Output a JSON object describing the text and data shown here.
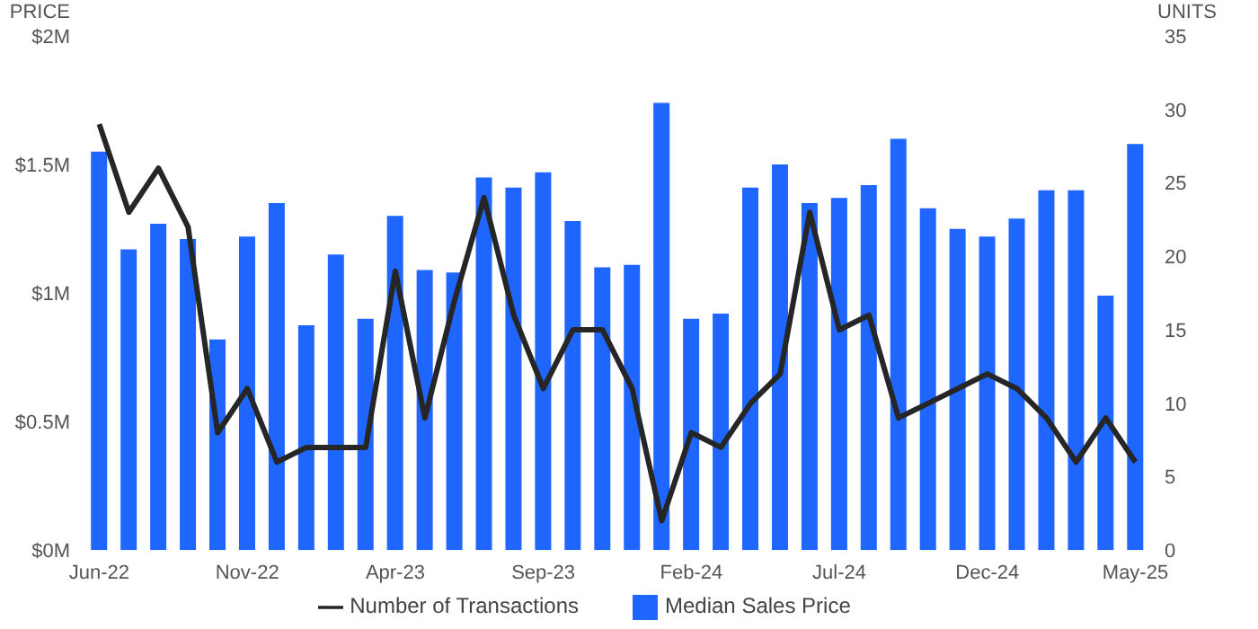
{
  "chart_data": {
    "type": "bar",
    "ylabel": "PRICE",
    "y2label": "UNITS",
    "categories": [
      "Jun-22",
      null,
      null,
      null,
      null,
      "Nov-22",
      null,
      null,
      null,
      null,
      "Apr-23",
      null,
      null,
      null,
      null,
      "Sep-23",
      null,
      null,
      null,
      null,
      "Feb-24",
      null,
      null,
      null,
      null,
      "Jul-24",
      null,
      null,
      null,
      null,
      "Dec-24",
      null,
      null,
      null,
      null,
      "May-25"
    ],
    "series": [
      {
        "name": "Number of Transactions",
        "type": "line",
        "axis": "y2",
        "color": "#262626",
        "values": [
          29,
          23,
          26,
          22,
          8,
          11,
          6,
          7,
          7,
          7,
          19,
          9,
          17,
          24,
          16,
          11,
          15,
          15,
          11,
          2,
          8,
          7,
          10,
          12,
          23,
          15,
          16,
          9,
          10,
          11,
          12,
          11,
          9,
          6,
          9,
          6
        ]
      },
      {
        "name": "Median Sales Price",
        "color": "#1f66ff",
        "values": [
          1.55,
          1.17,
          1.27,
          1.21,
          0.82,
          1.22,
          1.35,
          0.875,
          1.15,
          0.9,
          1.3,
          1.09,
          1.08,
          1.45,
          1.41,
          1.47,
          1.28,
          1.1,
          1.11,
          1.74,
          0.9,
          0.92,
          1.41,
          1.5,
          1.35,
          1.37,
          1.42,
          1.6,
          1.33,
          1.25,
          1.22,
          1.29,
          1.4,
          1.4,
          0.99,
          1.58
        ]
      }
    ],
    "ylim": [
      0,
      2
    ],
    "yticks": [
      {
        "value": 0,
        "label": "$0M"
      },
      {
        "value": 0.5,
        "label": "$0.5M"
      },
      {
        "value": 1,
        "label": "$1M"
      },
      {
        "value": 1.5,
        "label": "$1.5M"
      },
      {
        "value": 2,
        "label": "$2M"
      }
    ],
    "y2lim": [
      0,
      35
    ],
    "y2ticks": [
      0,
      5,
      10,
      15,
      20,
      25,
      30,
      35
    ],
    "grid": false,
    "legend": "bottom",
    "marker": "none",
    "line_style": "solid"
  }
}
